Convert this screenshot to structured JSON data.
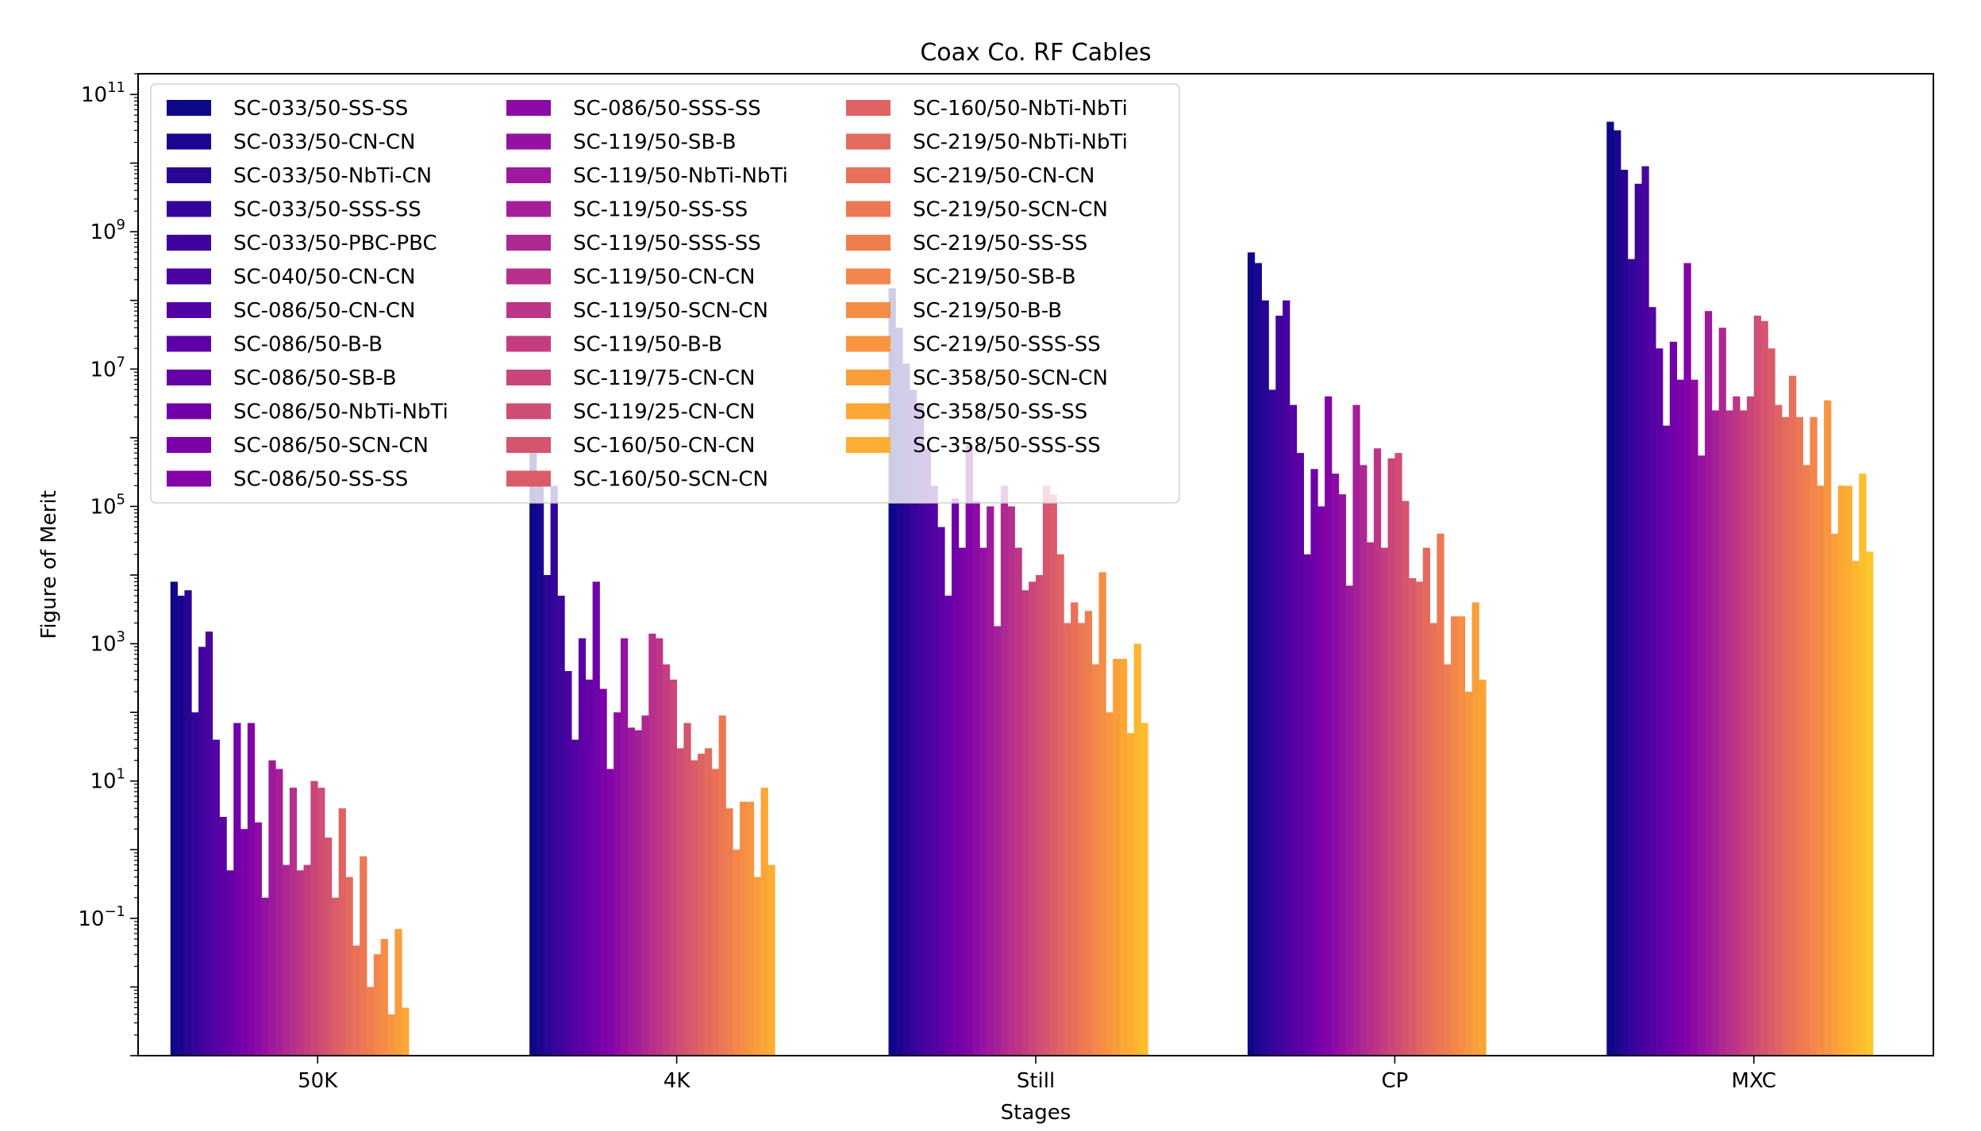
{
  "chart_data": {
    "type": "bar",
    "title": "Coax Co. RF Cables",
    "xlabel": "Stages",
    "ylabel": "Figure of Merit",
    "yscale": "log",
    "ylim": [
      0.001,
      200000000000
    ],
    "yticks": [
      {
        "value": 0.1,
        "base": "10",
        "exp": "−1"
      },
      {
        "value": 10,
        "base": "10",
        "exp": "1"
      },
      {
        "value": 1000,
        "base": "10",
        "exp": "3"
      },
      {
        "value": 100000,
        "base": "10",
        "exp": "5"
      },
      {
        "value": 10000000,
        "base": "10",
        "exp": "7"
      },
      {
        "value": 1000000000,
        "base": "10",
        "exp": "9"
      },
      {
        "value": 100000000000,
        "base": "10",
        "exp": "11"
      }
    ],
    "grid": false,
    "legend_position": "top-left",
    "colormap": "plasma",
    "categories": [
      "50K",
      "4K",
      "Still",
      "CP",
      "MXC"
    ],
    "series": [
      {
        "name": "SC-033/50-SS-SS",
        "color": "#0d0887",
        "values": [
          8000,
          1000000,
          150000000,
          500000000,
          40000000000
        ]
      },
      {
        "name": "SC-033/50-CN-CN",
        "color": "#1a0690",
        "values": [
          5000,
          200000,
          40000000,
          350000000,
          30000000000
        ]
      },
      {
        "name": "SC-033/50-NbTi-CN",
        "color": "#280592",
        "values": [
          6000,
          10000,
          12000000,
          100000000,
          8000000000
        ]
      },
      {
        "name": "SC-033/50-SSS-SS",
        "color": "#33059c",
        "values": [
          100,
          200000,
          5000000,
          5000000,
          400000000
        ]
      },
      {
        "name": "SC-033/50-PBC-PBC",
        "color": "#3e049c",
        "values": [
          900,
          5000,
          3000000,
          60000000,
          5000000000
        ]
      },
      {
        "name": "SC-040/50-CN-CN",
        "color": "#4903a0",
        "values": [
          1500,
          400,
          700000,
          100000000,
          9000000000
        ]
      },
      {
        "name": "SC-086/50-CN-CN",
        "color": "#5302a3",
        "values": [
          40,
          40,
          200000,
          3000000,
          80000000
        ]
      },
      {
        "name": "SC-086/50-B-B",
        "color": "#5c01a6",
        "values": [
          3,
          1200,
          50000,
          600000,
          20000000
        ]
      },
      {
        "name": "SC-086/50-SB-B",
        "color": "#6600a7",
        "values": [
          0.5,
          300,
          5000,
          20000,
          1500000
        ]
      },
      {
        "name": "SC-086/50-NbTi-NbTi",
        "color": "#7000a8",
        "values": [
          70,
          8000,
          130000,
          350000,
          25000000
        ]
      },
      {
        "name": "SC-086/50-SCN-CN",
        "color": "#7a02a8",
        "values": [
          2,
          220,
          25000,
          100000,
          7000000
        ]
      },
      {
        "name": "SC-086/50-SS-SS",
        "color": "#8305a7",
        "values": [
          70,
          15,
          800000,
          4000000,
          350000000
        ]
      },
      {
        "name": "SC-086/50-SSS-SS",
        "color": "#8d0ba5",
        "values": [
          2.5,
          100,
          120000,
          300000,
          7000000
        ]
      },
      {
        "name": "SC-119/50-SB-B",
        "color": "#9512a1",
        "values": [
          0.2,
          1200,
          25000,
          150000,
          550000
        ]
      },
      {
        "name": "SC-119/50-NbTi-NbTi",
        "color": "#9e199d",
        "values": [
          20,
          60,
          100000,
          7000,
          70000000
        ]
      },
      {
        "name": "SC-119/50-SS-SS",
        "color": "#a51f99",
        "values": [
          15,
          55,
          1800,
          3000000,
          2500000
        ]
      },
      {
        "name": "SC-119/50-SSS-SS",
        "color": "#ae2891",
        "values": [
          0.6,
          90,
          200000,
          400000,
          40000000
        ]
      },
      {
        "name": "SC-119/50-CN-CN",
        "color": "#b6308b",
        "values": [
          8,
          1400,
          100000,
          30000,
          2500000
        ]
      },
      {
        "name": "SC-119/50-SCN-CN",
        "color": "#bc3587",
        "values": [
          0.5,
          1200,
          25000,
          700000,
          4000000
        ]
      },
      {
        "name": "SC-119/50-B-B",
        "color": "#c43e7f",
        "values": [
          0.6,
          500,
          6000,
          25000,
          2500000
        ]
      },
      {
        "name": "SC-119/75-CN-CN",
        "color": "#ca457a",
        "values": [
          10,
          300,
          8000,
          500000,
          4000000
        ]
      },
      {
        "name": "SC-119/25-CN-CN",
        "color": "#d04d73",
        "values": [
          8,
          30,
          10000,
          600000,
          60000000
        ]
      },
      {
        "name": "SC-160/50-CN-CN",
        "color": "#d5546e",
        "values": [
          1.5,
          70,
          200000,
          120000,
          50000000
        ]
      },
      {
        "name": "SC-160/50-SCN-CN",
        "color": "#da5b69",
        "values": [
          0.2,
          20,
          150000,
          9000,
          20000000
        ]
      },
      {
        "name": "SC-160/50-NbTi-NbTi",
        "color": "#e06363",
        "values": [
          4,
          25,
          20000,
          8000,
          3000000
        ]
      },
      {
        "name": "SC-219/50-NbTi-NbTi",
        "color": "#e36b5d",
        "values": [
          0.4,
          30,
          2000,
          25000,
          2000000
        ]
      },
      {
        "name": "SC-219/50-CN-CN",
        "color": "#e87059",
        "values": [
          0.04,
          15,
          4000,
          2000,
          8000000
        ]
      },
      {
        "name": "SC-219/50-SCN-CN",
        "color": "#ec7853",
        "values": [
          0.8,
          90,
          2000,
          40000,
          2000000
        ]
      },
      {
        "name": "SC-219/50-SS-SS",
        "color": "#ef7e4f",
        "values": [
          0.01,
          4,
          3000,
          500,
          400000
        ]
      },
      {
        "name": "SC-219/50-SB-B",
        "color": "#f3864a",
        "values": [
          0.03,
          1,
          500,
          2500,
          2000000
        ]
      },
      {
        "name": "SC-219/50-B-B",
        "color": "#f58d45",
        "values": [
          0.05,
          5,
          11000,
          2500,
          200000
        ]
      },
      {
        "name": "SC-219/50-SSS-SS",
        "color": "#f89540",
        "values": [
          0.004,
          5,
          100,
          200,
          3500000
        ]
      },
      {
        "name": "SC-358/50-SCN-CN",
        "color": "#f99e3b",
        "values": [
          0.07,
          0.4,
          600,
          4000,
          40000
        ]
      },
      {
        "name": "SC-358/50-SS-SS",
        "color": "#fca636",
        "values": [
          0.005,
          8,
          600,
          300,
          200000
        ]
      },
      {
        "name": "SC-358/50-SSS-SS",
        "color": "#fdae32",
        "values": [
          null,
          0.6,
          50,
          null,
          200000
        ]
      },
      {
        "name": "",
        "color": "#fdb62f",
        "values": [
          null,
          null,
          1000,
          null,
          16000
        ]
      },
      {
        "name": "",
        "color": "#fcbe2c",
        "values": [
          null,
          null,
          70,
          null,
          300000
        ]
      },
      {
        "name": "",
        "color": "#fbc72a",
        "values": [
          null,
          null,
          null,
          null,
          22000
        ]
      },
      {
        "name": "",
        "color": "#f9d02a",
        "values": [
          null,
          null,
          null,
          null,
          null
        ]
      },
      {
        "name": "",
        "color": "#f7d92b",
        "values": [
          null,
          null,
          null,
          null,
          null
        ]
      },
      {
        "name": "",
        "color": "#f4e12d",
        "values": [
          null,
          null,
          null,
          null,
          null
        ]
      },
      {
        "name": "",
        "color": "#f0f921",
        "values": [
          null,
          null,
          null,
          null,
          null
        ]
      }
    ]
  }
}
